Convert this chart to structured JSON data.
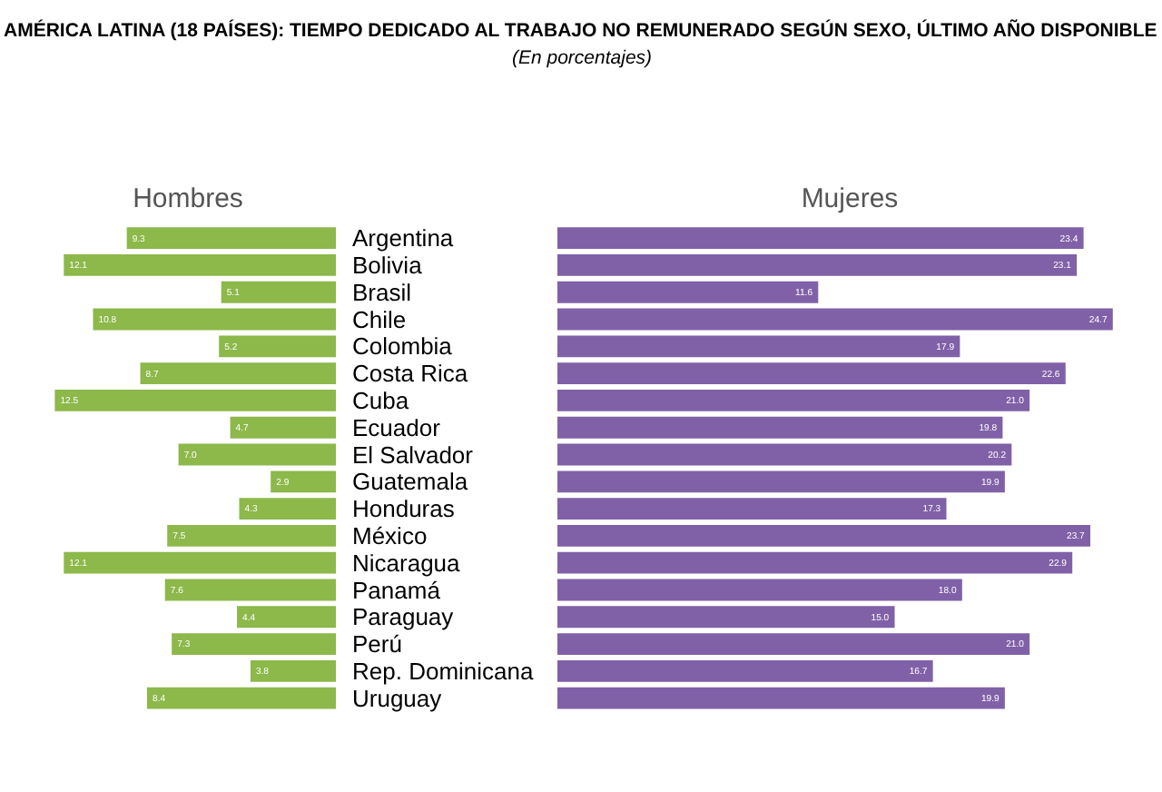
{
  "chart_data": [
    {
      "type": "other",
      "title": "AMÉRICA LATINA (18 PAÍSES): TIEMPO DEDICADO AL TRABAJO NO REMUNERADO SEGÚN SEXO, ÚLTIMO AÑO DISPONIBLE",
      "subtitle": "(En porcentajes)"
    },
    {
      "type": "bar",
      "orientation": "horizontal",
      "xlabel": "Hombres",
      "categories": [
        "Argentina",
        "Bolivia",
        "Brasil",
        "Chile",
        "Colombia",
        "Costa Rica",
        "Cuba",
        "Ecuador",
        "El Salvador",
        "Guatemala",
        "Honduras",
        "México",
        "Nicaragua",
        "Panamá",
        "Paraguay",
        "Perú",
        "Rep. Dominicana",
        "Uruguay"
      ],
      "series": [
        {
          "color": "#8db84a",
          "values": [
            9.3,
            12.1,
            5.1,
            10.8,
            5.2,
            8.7,
            12.5,
            4.7,
            7.0,
            2.9,
            4.3,
            7.5,
            12.1,
            7.6,
            4.4,
            7.3,
            3.8,
            8.4
          ],
          "value_labels": [
            "9.3",
            "12.1",
            "5.1",
            "10.8",
            "5.2",
            "8.7",
            "12.5",
            "4.7",
            "7.0",
            "2.9",
            "4.3",
            "7.5",
            "12.1",
            "7.6",
            "4.4",
            "7.3",
            "3.8",
            "8.4"
          ]
        }
      ],
      "tick_labels": "y"
    },
    {
      "type": "bar",
      "orientation": "horizontal",
      "xlabel": "Mujeres",
      "categories": [
        null,
        null,
        null,
        null,
        null,
        null,
        null,
        null,
        null,
        null,
        null,
        null,
        null,
        null,
        null,
        null,
        null,
        null
      ],
      "series": [
        {
          "color": "#8061a8",
          "values": [
            23.4,
            23.1,
            11.6,
            24.7,
            17.9,
            22.6,
            21.0,
            19.8,
            20.2,
            19.9,
            17.3,
            23.7,
            22.9,
            18.0,
            15.0,
            21.0,
            16.7,
            19.9
          ],
          "value_labels": [
            "23.4",
            "23.1",
            "11.6",
            "24.7",
            "17.9",
            "22.6",
            "21.0",
            "19.8",
            "20.2",
            "19.9",
            "17.3",
            "23.7",
            "22.9",
            "18.0",
            "15.0",
            "21.0",
            "16.7",
            "19.9"
          ]
        }
      ],
      "tick_labels": false
    }
  ]
}
